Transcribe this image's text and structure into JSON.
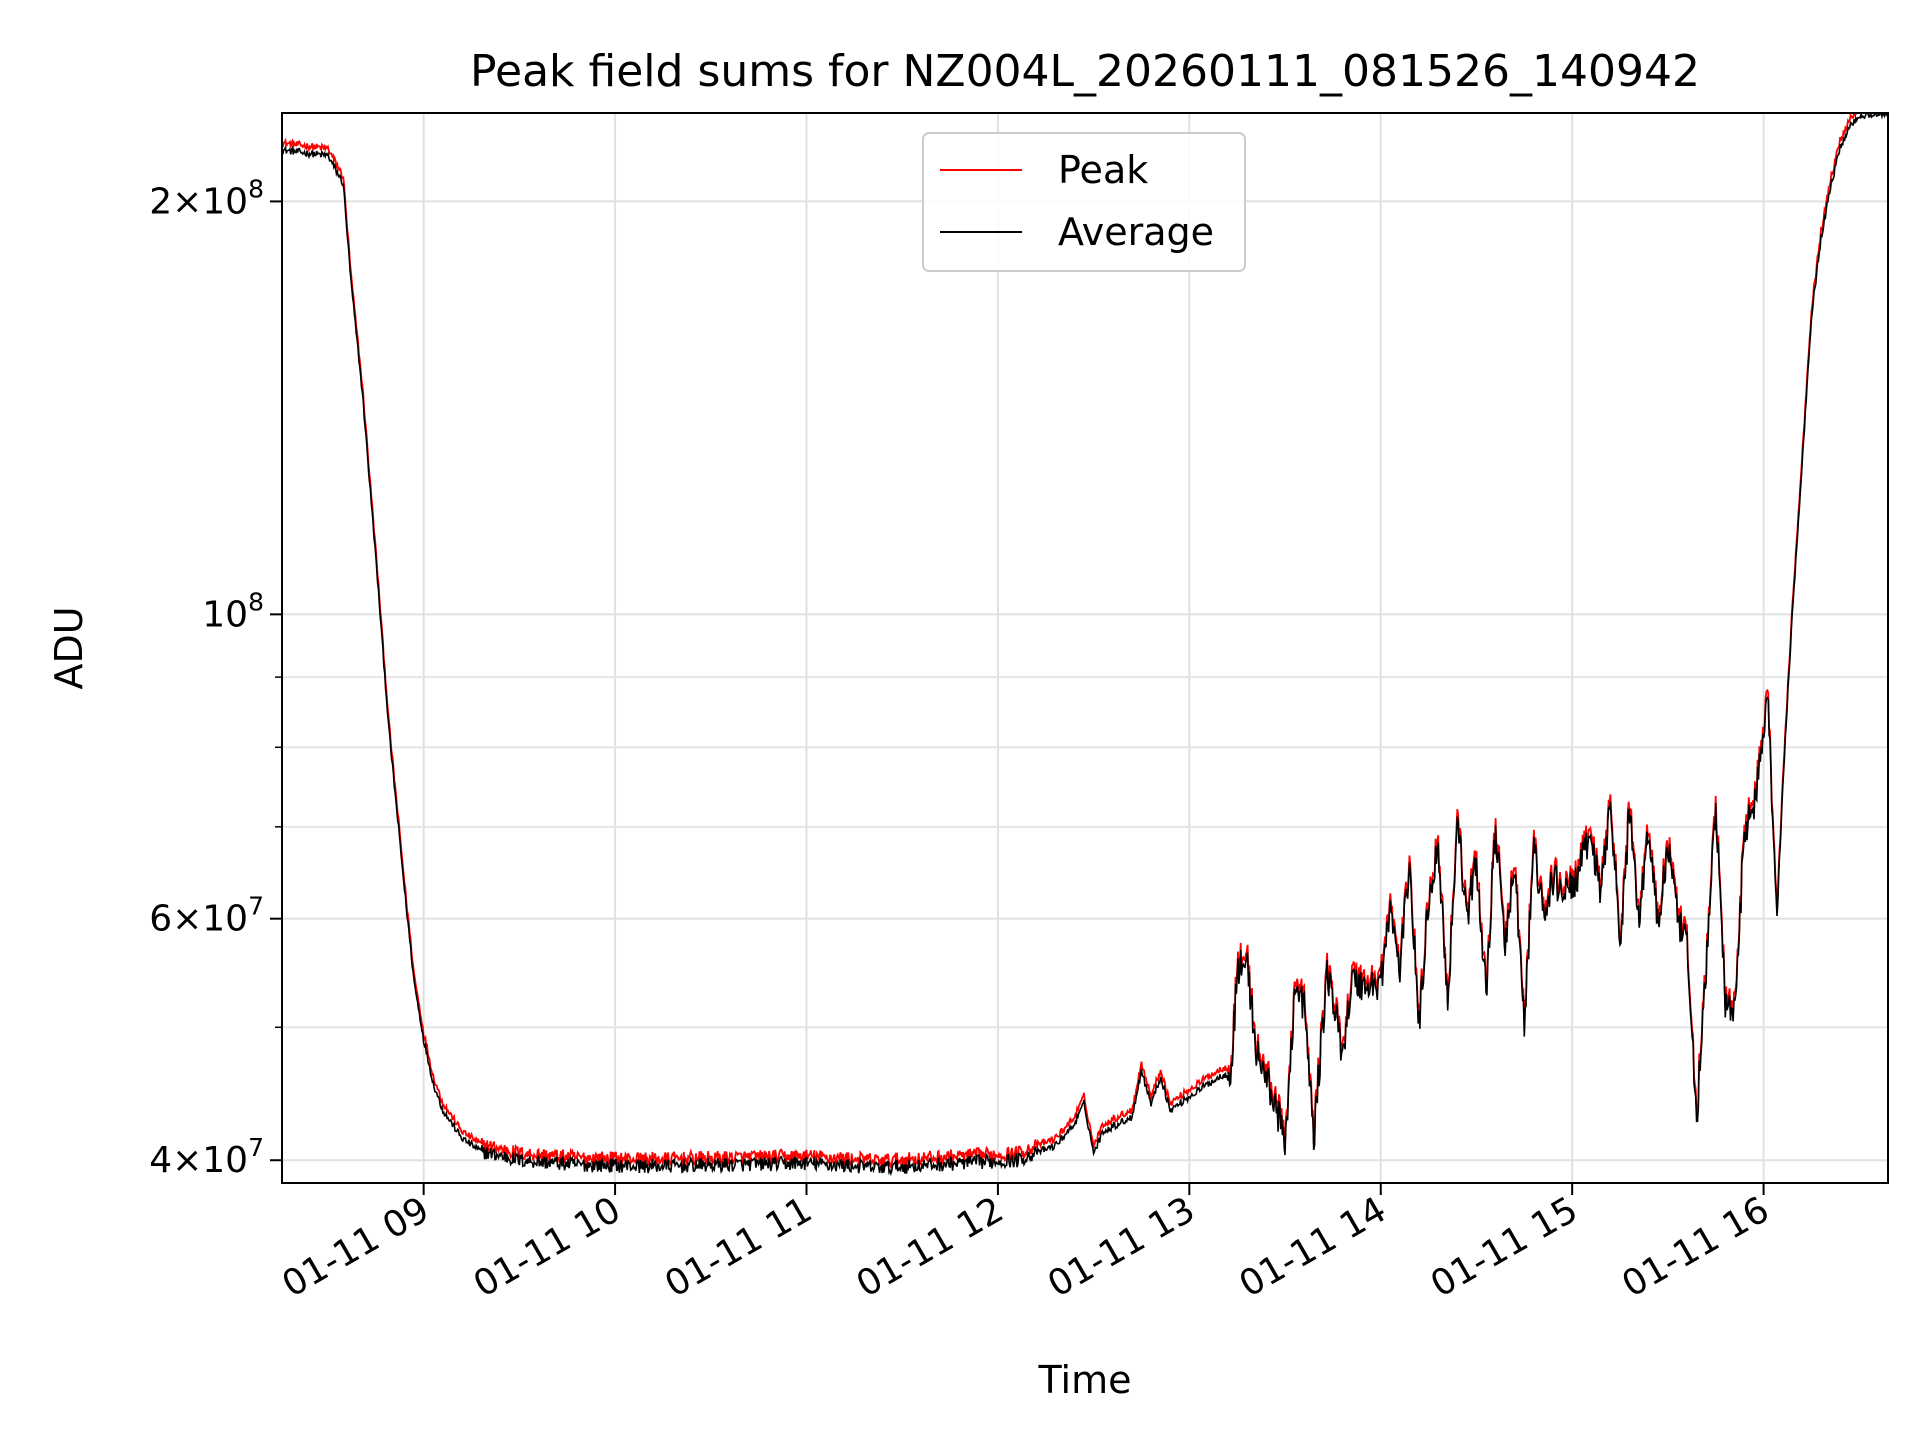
{
  "chart_data": {
    "type": "line",
    "title": "Peak field sums for NZ004L_20260111_081526_140942",
    "xlabel": "Time",
    "ylabel": "ADU",
    "x_unit": "hours",
    "xlim": [
      8.26,
      16.65
    ],
    "ylim": [
      38500000,
      232000000
    ],
    "yscale": "log",
    "grid": true,
    "legend_location": "upper center",
    "x_ticks": [
      {
        "value": 9,
        "label": "01-11 09"
      },
      {
        "value": 10,
        "label": "01-11 10"
      },
      {
        "value": 11,
        "label": "01-11 11"
      },
      {
        "value": 12,
        "label": "01-11 12"
      },
      {
        "value": 13,
        "label": "01-11 13"
      },
      {
        "value": 14,
        "label": "01-11 14"
      },
      {
        "value": 15,
        "label": "01-11 15"
      },
      {
        "value": 16,
        "label": "01-11 16"
      }
    ],
    "y_major_ticks": [
      {
        "value": 40000000,
        "mantissa": "4×10",
        "exp": "7"
      },
      {
        "value": 60000000,
        "mantissa": "6×10",
        "exp": "7"
      },
      {
        "value": 100000000,
        "mantissa": "10",
        "exp": "8"
      },
      {
        "value": 200000000,
        "mantissa": "2×10",
        "exp": "8"
      }
    ],
    "y_minor_ticks": [
      50000000,
      70000000,
      80000000,
      90000000
    ],
    "series": [
      {
        "name": "Peak",
        "color": "#ff0000"
      },
      {
        "name": "Average",
        "color": "#000000"
      }
    ],
    "average_points": [
      [
        8.26,
        218000000
      ],
      [
        8.5,
        216000000
      ],
      [
        8.58,
        206000000
      ],
      [
        8.62,
        175000000
      ],
      [
        8.68,
        145000000
      ],
      [
        8.75,
        110000000
      ],
      [
        8.82,
        82000000
      ],
      [
        8.9,
        63000000
      ],
      [
        8.95,
        54000000
      ],
      [
        9.0,
        49000000
      ],
      [
        9.05,
        45500000
      ],
      [
        9.1,
        43500000
      ],
      [
        9.2,
        41500000
      ],
      [
        9.3,
        40600000
      ],
      [
        9.5,
        40000000
      ],
      [
        9.8,
        39700000
      ],
      [
        10.2,
        39600000
      ],
      [
        10.6,
        39700000
      ],
      [
        11.0,
        39800000
      ],
      [
        11.4,
        39500000
      ],
      [
        11.8,
        39800000
      ],
      [
        12.1,
        40000000
      ],
      [
        12.3,
        41000000
      ],
      [
        12.4,
        42500000
      ],
      [
        12.45,
        44000000
      ],
      [
        12.5,
        40500000
      ],
      [
        12.55,
        42000000
      ],
      [
        12.7,
        43000000
      ],
      [
        12.75,
        46500000
      ],
      [
        12.8,
        44000000
      ],
      [
        12.85,
        46000000
      ],
      [
        12.9,
        43500000
      ],
      [
        13.0,
        44500000
      ],
      [
        13.1,
        45500000
      ],
      [
        13.22,
        46500000
      ],
      [
        13.25,
        55000000
      ],
      [
        13.3,
        56000000
      ],
      [
        13.35,
        48000000
      ],
      [
        13.45,
        44000000
      ],
      [
        13.5,
        41000000
      ],
      [
        13.55,
        53000000
      ],
      [
        13.6,
        52000000
      ],
      [
        13.65,
        41500000
      ],
      [
        13.72,
        55000000
      ],
      [
        13.8,
        48000000
      ],
      [
        13.85,
        54000000
      ],
      [
        13.95,
        53500000
      ],
      [
        14.0,
        54000000
      ],
      [
        14.05,
        61000000
      ],
      [
        14.1,
        55000000
      ],
      [
        14.15,
        66000000
      ],
      [
        14.2,
        50000000
      ],
      [
        14.25,
        62000000
      ],
      [
        14.3,
        68000000
      ],
      [
        14.35,
        52000000
      ],
      [
        14.4,
        71000000
      ],
      [
        14.45,
        60000000
      ],
      [
        14.5,
        66000000
      ],
      [
        14.55,
        53000000
      ],
      [
        14.6,
        70000000
      ],
      [
        14.65,
        57000000
      ],
      [
        14.7,
        66000000
      ],
      [
        14.75,
        50000000
      ],
      [
        14.8,
        68000000
      ],
      [
        14.85,
        60000000
      ],
      [
        14.9,
        64000000
      ],
      [
        14.95,
        63000000
      ],
      [
        15.0,
        63000000
      ],
      [
        15.05,
        66000000
      ],
      [
        15.1,
        69000000
      ],
      [
        15.15,
        62000000
      ],
      [
        15.2,
        74000000
      ],
      [
        15.25,
        57000000
      ],
      [
        15.3,
        72000000
      ],
      [
        15.35,
        60000000
      ],
      [
        15.4,
        70000000
      ],
      [
        15.45,
        59000000
      ],
      [
        15.5,
        68000000
      ],
      [
        15.55,
        60000000
      ],
      [
        15.6,
        57000000
      ],
      [
        15.65,
        43000000
      ],
      [
        15.7,
        55000000
      ],
      [
        15.75,
        73000000
      ],
      [
        15.8,
        52000000
      ],
      [
        15.85,
        51000000
      ],
      [
        15.9,
        70000000
      ],
      [
        15.95,
        72000000
      ],
      [
        16.02,
        88000000
      ],
      [
        16.07,
        60000000
      ],
      [
        16.1,
        75000000
      ],
      [
        16.15,
        100000000
      ],
      [
        16.2,
        128000000
      ],
      [
        16.25,
        165000000
      ],
      [
        16.3,
        188000000
      ],
      [
        16.35,
        205000000
      ],
      [
        16.4,
        219000000
      ],
      [
        16.45,
        227000000
      ],
      [
        16.5,
        231000000
      ],
      [
        16.65,
        232000000
      ]
    ]
  }
}
